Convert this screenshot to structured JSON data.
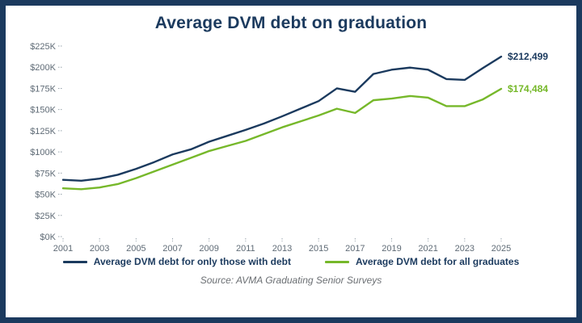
{
  "title": "Average DVM debt on graduation",
  "source": "Source: AVMA Graduating Senior Surveys",
  "colors": {
    "frame_border": "#1b3a5e",
    "navy_series": "#1b3a5e",
    "green_series": "#76b82a",
    "axis_text": "#5f6b76"
  },
  "chart_data": {
    "type": "line",
    "title": "Average DVM debt on graduation",
    "x": [
      2001,
      2002,
      2003,
      2004,
      2005,
      2006,
      2007,
      2008,
      2009,
      2010,
      2011,
      2012,
      2013,
      2014,
      2015,
      2016,
      2017,
      2018,
      2019,
      2020,
      2021,
      2022,
      2023,
      2024,
      2025
    ],
    "series": [
      {
        "name": "Average DVM debt for only those with debt",
        "color": "#1b3a5e",
        "end_label": "$212,499",
        "values": [
          67000,
          66000,
          68500,
          73000,
          80000,
          88000,
          97000,
          103000,
          112000,
          119000,
          126000,
          133500,
          142000,
          151000,
          160000,
          175000,
          171000,
          192000,
          197000,
          199500,
          197000,
          186000,
          185000,
          199000,
          212499
        ]
      },
      {
        "name": "Average DVM debt for all graduates",
        "color": "#76b82a",
        "end_label": "$174,484",
        "values": [
          57000,
          56000,
          58000,
          62000,
          69000,
          77000,
          85000,
          93000,
          101000,
          107000,
          113000,
          121000,
          129000,
          136000,
          143000,
          151000,
          146000,
          161000,
          163000,
          166000,
          164000,
          154000,
          154000,
          162000,
          174484
        ]
      }
    ],
    "ylim": [
      0,
      225000
    ],
    "yticks": [
      {
        "label": "$0K",
        "value": 0
      },
      {
        "label": "$25K",
        "value": 25000
      },
      {
        "label": "$50K",
        "value": 50000
      },
      {
        "label": "$75K",
        "value": 75000
      },
      {
        "label": "$100K",
        "value": 100000
      },
      {
        "label": "$125K",
        "value": 125000
      },
      {
        "label": "$150K",
        "value": 150000
      },
      {
        "label": "$175K",
        "value": 175000
      },
      {
        "label": "$200K",
        "value": 200000
      },
      {
        "label": "$225K",
        "value": 225000
      }
    ],
    "xtick_step": 2,
    "grid": false,
    "legend_position": "bottom"
  }
}
